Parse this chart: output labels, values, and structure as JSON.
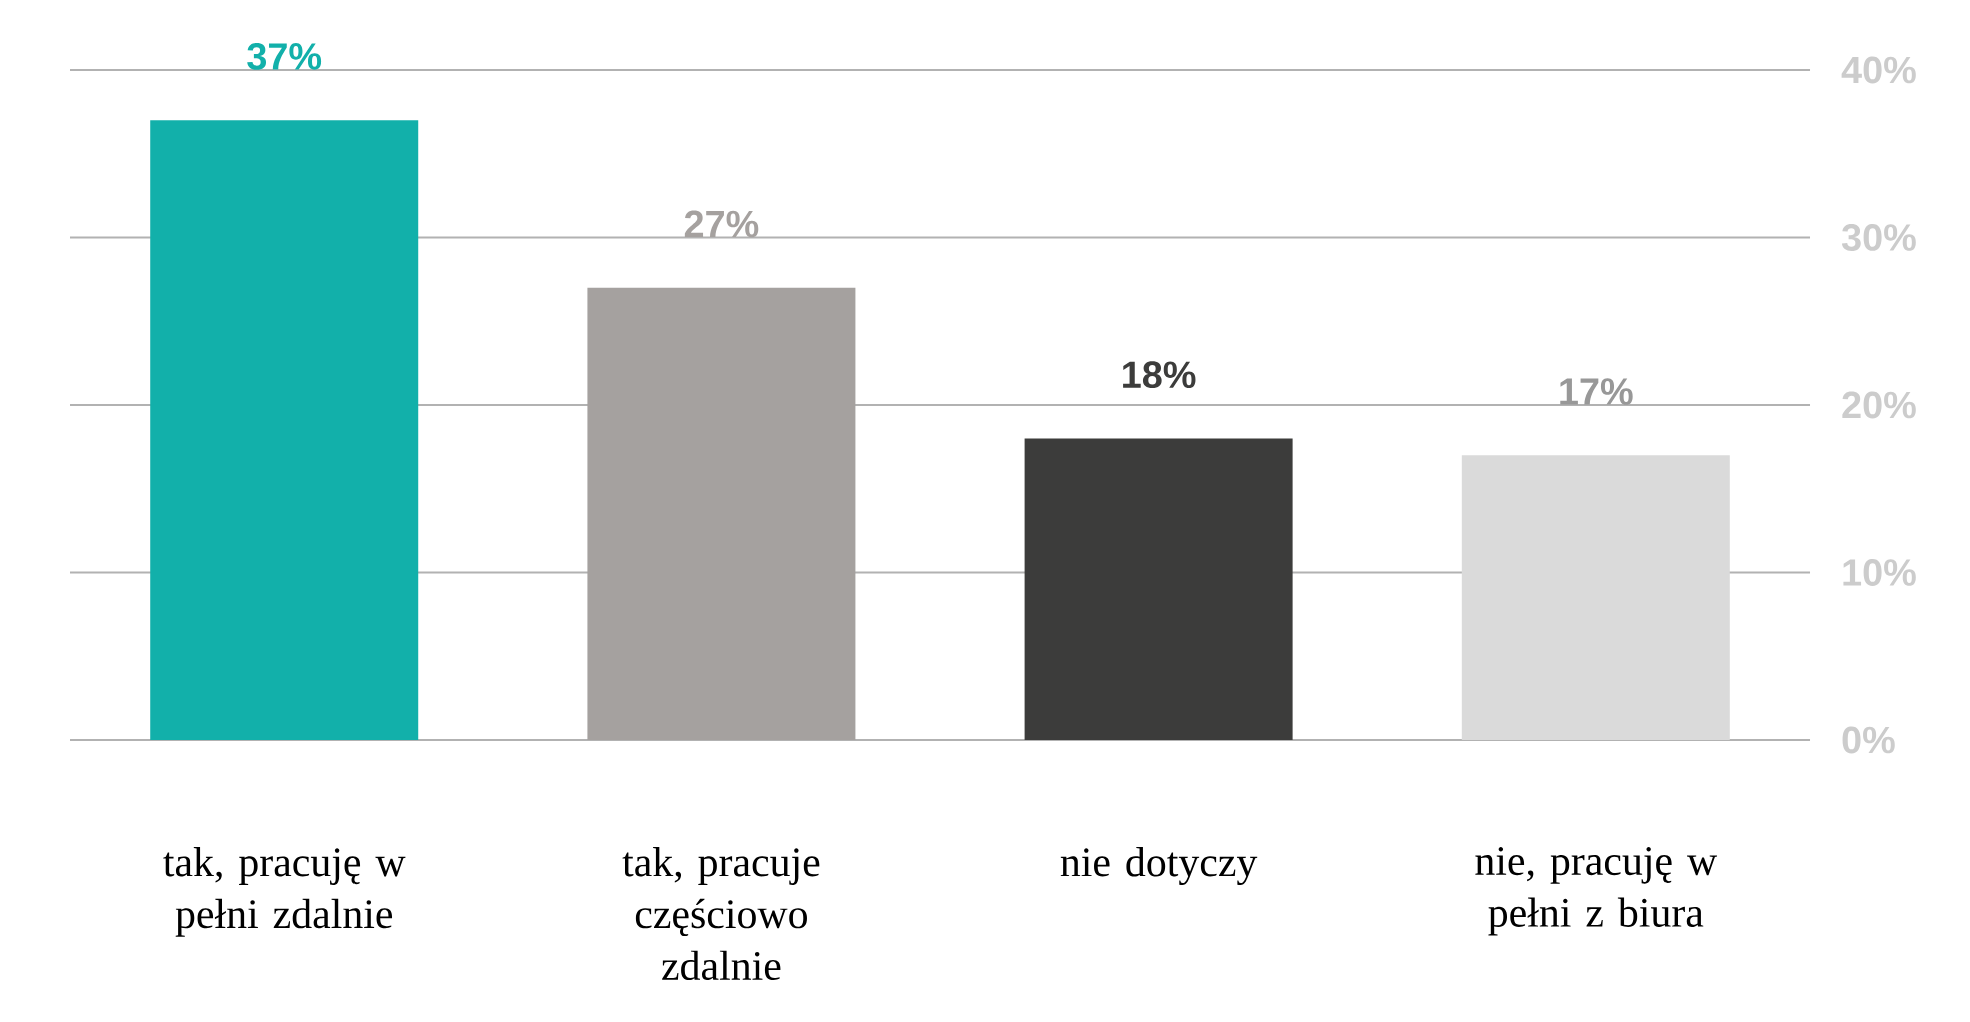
{
  "chart_data": {
    "type": "bar",
    "categories": [
      "tak, pracuję w pełni zdalnie",
      "tak, pracuje częściowo zdalnie",
      "nie dotyczy",
      "nie, pracuję w pełni z biura"
    ],
    "values": [
      37,
      27,
      18,
      17
    ],
    "colors": [
      "#12b0aa",
      "#a5a19f",
      "#3c3c3b",
      "#dadada"
    ],
    "value_labels": [
      "37%",
      "27%",
      "18%",
      "17%"
    ],
    "ylim": [
      0,
      40
    ],
    "yticks": [
      {
        "value": 0,
        "label": "0%"
      },
      {
        "value": 10,
        "label": "10%"
      },
      {
        "value": 20,
        "label": "20%"
      },
      {
        "value": 30,
        "label": "30%"
      },
      {
        "value": 40,
        "label": "40%"
      }
    ],
    "grid": "y"
  }
}
